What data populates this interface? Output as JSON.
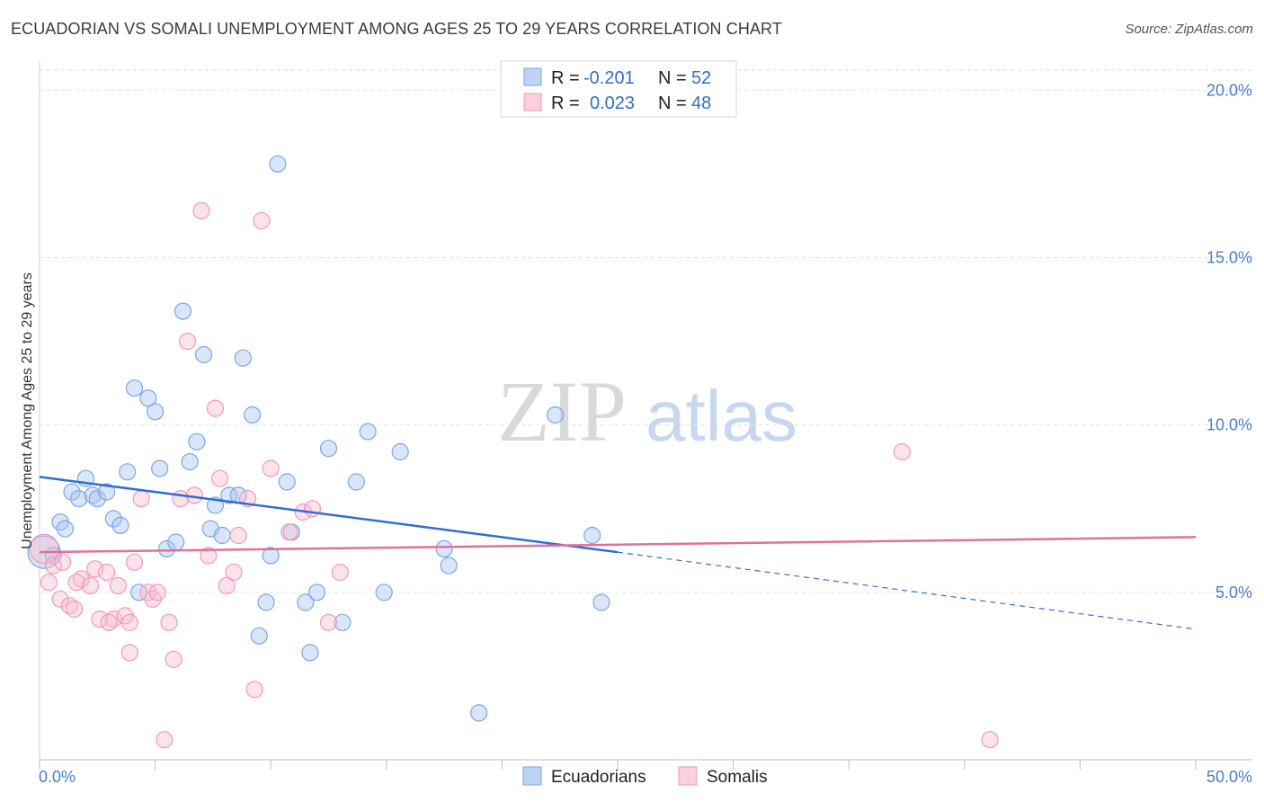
{
  "title": "ECUADORIAN VS SOMALI UNEMPLOYMENT AMONG AGES 25 TO 29 YEARS CORRELATION CHART",
  "source": "Source: ZipAtlas.com",
  "watermark": {
    "zip": "ZIP",
    "atlas": "atlas"
  },
  "legend_top": {
    "r_label": "R =",
    "n_label": "N =",
    "rows": [
      {
        "r": "-0.201",
        "n": "52"
      },
      {
        "r": "0.023",
        "n": "48"
      }
    ]
  },
  "chart_data": {
    "type": "scatter",
    "title": "ECUADORIAN VS SOMALI UNEMPLOYMENT AMONG AGES 25 TO 29 YEARS CORRELATION CHART",
    "xlabel": "",
    "ylabel": "Unemployment Among Ages 25 to 29 years",
    "xlim": [
      0,
      50
    ],
    "ylim": [
      0,
      20.6
    ],
    "x_tick_labels": [
      "0.0%",
      "50.0%"
    ],
    "y_ticks": [
      5,
      10,
      15,
      20
    ],
    "y_tick_labels": [
      "5.0%",
      "10.0%",
      "15.0%",
      "20.0%"
    ],
    "grid": true,
    "legend": "top-center",
    "colors": {
      "ecuadorians": "#7aa7e6",
      "somalis": "#f09ab7",
      "ecu_line": "#2f6fd0",
      "som_line": "#e0719a"
    },
    "series": [
      {
        "name": "Ecuadorians",
        "trend": {
          "x0": 0,
          "y0": 8.45,
          "x1": 25,
          "y1": 6.2,
          "dash_to_x": 50,
          "dash_to_y": 3.9
        },
        "points": [
          [
            0.2,
            6.2
          ],
          [
            0.6,
            6.1
          ],
          [
            0.9,
            7.1
          ],
          [
            1.1,
            6.9
          ],
          [
            1.4,
            8.0
          ],
          [
            1.7,
            7.8
          ],
          [
            2.0,
            8.4
          ],
          [
            2.3,
            7.9
          ],
          [
            2.5,
            7.8
          ],
          [
            2.9,
            8.0
          ],
          [
            3.2,
            7.2
          ],
          [
            3.5,
            7.0
          ],
          [
            3.8,
            8.6
          ],
          [
            4.1,
            11.1
          ],
          [
            4.3,
            5.0
          ],
          [
            4.7,
            10.8
          ],
          [
            5.0,
            10.4
          ],
          [
            5.2,
            8.7
          ],
          [
            5.5,
            6.3
          ],
          [
            5.9,
            6.5
          ],
          [
            6.2,
            13.4
          ],
          [
            6.5,
            8.9
          ],
          [
            6.8,
            9.5
          ],
          [
            7.1,
            12.1
          ],
          [
            7.4,
            6.9
          ],
          [
            7.6,
            7.6
          ],
          [
            7.9,
            6.7
          ],
          [
            8.2,
            7.9
          ],
          [
            8.6,
            7.9
          ],
          [
            8.8,
            12.0
          ],
          [
            9.2,
            10.3
          ],
          [
            9.5,
            3.7
          ],
          [
            9.8,
            4.7
          ],
          [
            10.0,
            6.1
          ],
          [
            10.3,
            17.8
          ],
          [
            10.7,
            8.3
          ],
          [
            10.9,
            6.8
          ],
          [
            11.5,
            4.7
          ],
          [
            11.7,
            3.2
          ],
          [
            12.0,
            5.0
          ],
          [
            12.5,
            9.3
          ],
          [
            13.1,
            4.1
          ],
          [
            13.7,
            8.3
          ],
          [
            14.2,
            9.8
          ],
          [
            14.9,
            5.0
          ],
          [
            15.6,
            9.2
          ],
          [
            17.5,
            6.3
          ],
          [
            17.7,
            5.8
          ],
          [
            19.0,
            1.4
          ],
          [
            22.3,
            10.3
          ],
          [
            23.9,
            6.7
          ],
          [
            24.3,
            4.7
          ]
        ]
      },
      {
        "name": "Somalis",
        "trend": {
          "x0": 0,
          "y0": 6.2,
          "x1": 50,
          "y1": 6.65
        },
        "points": [
          [
            0.2,
            6.3
          ],
          [
            0.4,
            5.3
          ],
          [
            0.6,
            5.8
          ],
          [
            0.9,
            4.8
          ],
          [
            1.0,
            5.9
          ],
          [
            1.3,
            4.6
          ],
          [
            1.5,
            4.5
          ],
          [
            1.8,
            5.4
          ],
          [
            1.6,
            5.3
          ],
          [
            2.2,
            5.2
          ],
          [
            2.4,
            5.7
          ],
          [
            2.6,
            4.2
          ],
          [
            2.9,
            5.6
          ],
          [
            3.2,
            4.2
          ],
          [
            3.4,
            5.2
          ],
          [
            3.7,
            4.3
          ],
          [
            3.9,
            4.1
          ],
          [
            4.1,
            5.9
          ],
          [
            4.4,
            7.8
          ],
          [
            4.7,
            5.0
          ],
          [
            4.9,
            4.8
          ],
          [
            5.1,
            5.0
          ],
          [
            5.4,
            0.6
          ],
          [
            5.6,
            4.1
          ],
          [
            5.8,
            3.0
          ],
          [
            6.1,
            7.8
          ],
          [
            6.4,
            12.5
          ],
          [
            6.7,
            7.9
          ],
          [
            7.0,
            16.4
          ],
          [
            7.3,
            6.1
          ],
          [
            7.6,
            10.5
          ],
          [
            7.8,
            8.4
          ],
          [
            8.1,
            5.2
          ],
          [
            8.4,
            5.6
          ],
          [
            8.6,
            6.7
          ],
          [
            9.0,
            7.8
          ],
          [
            9.3,
            2.1
          ],
          [
            9.6,
            16.1
          ],
          [
            10.0,
            8.7
          ],
          [
            10.8,
            6.8
          ],
          [
            11.4,
            7.4
          ],
          [
            11.8,
            7.5
          ],
          [
            12.5,
            4.1
          ],
          [
            13.0,
            5.6
          ],
          [
            3.9,
            3.2
          ],
          [
            3.0,
            4.1
          ],
          [
            37.3,
            9.2
          ],
          [
            41.1,
            0.6
          ]
        ]
      }
    ]
  },
  "bottom_legend": [
    "Ecuadorians",
    "Somalis"
  ]
}
